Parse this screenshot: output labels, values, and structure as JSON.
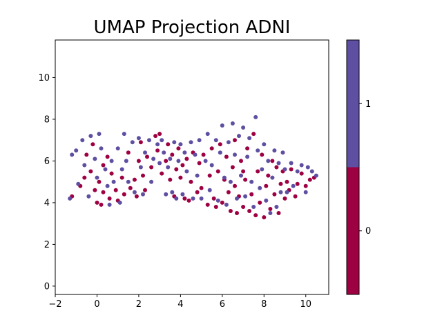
{
  "chart_data": {
    "type": "scatter",
    "title": "UMAP Projection ADNI",
    "xlabel": "",
    "ylabel": "",
    "xlim": [
      -2,
      11.1
    ],
    "ylim": [
      -0.4,
      11.8
    ],
    "xticks": [
      -2,
      0,
      2,
      4,
      6,
      8,
      10
    ],
    "yticks": [
      0,
      2,
      4,
      6,
      8,
      10
    ],
    "grid": false,
    "marker_size": 3,
    "colorbar": {
      "ticks": [
        "0",
        "1"
      ],
      "colors": [
        "#9e0142",
        "#5e4fa2"
      ]
    },
    "series": [
      {
        "label": "0",
        "color": "#9e0142",
        "points": [
          [
            -1.2,
            4.3
          ],
          [
            -0.8,
            4.8
          ],
          [
            -0.6,
            5.2
          ],
          [
            -0.5,
            6.3
          ],
          [
            -0.3,
            5.5
          ],
          [
            -0.2,
            6.8
          ],
          [
            -0.1,
            4.6
          ],
          [
            0.0,
            4.0
          ],
          [
            0.1,
            5.0
          ],
          [
            0.2,
            3.9
          ],
          [
            0.3,
            4.5
          ],
          [
            0.3,
            5.8
          ],
          [
            0.5,
            6.2
          ],
          [
            0.6,
            4.2
          ],
          [
            0.7,
            5.4
          ],
          [
            0.9,
            4.6
          ],
          [
            1.0,
            4.1
          ],
          [
            1.2,
            5.2
          ],
          [
            1.3,
            4.4
          ],
          [
            1.5,
            6.4
          ],
          [
            1.6,
            4.7
          ],
          [
            1.8,
            5.1
          ],
          [
            1.9,
            4.3
          ],
          [
            2.0,
            6.0
          ],
          [
            2.1,
            6.9
          ],
          [
            2.2,
            5.3
          ],
          [
            2.3,
            4.6
          ],
          [
            2.4,
            6.2
          ],
          [
            2.6,
            5.7
          ],
          [
            2.8,
            7.2
          ],
          [
            2.9,
            6.5
          ],
          [
            3.0,
            7.3
          ],
          [
            3.1,
            5.4
          ],
          [
            3.3,
            6.0
          ],
          [
            3.4,
            6.8
          ],
          [
            3.5,
            5.1
          ],
          [
            3.6,
            6.3
          ],
          [
            3.7,
            4.3
          ],
          [
            3.8,
            5.6
          ],
          [
            3.9,
            6.6
          ],
          [
            4.0,
            5.2
          ],
          [
            4.1,
            5.8
          ],
          [
            4.2,
            4.2
          ],
          [
            4.3,
            6.1
          ],
          [
            4.5,
            5.0
          ],
          [
            4.6,
            6.4
          ],
          [
            4.8,
            4.5
          ],
          [
            4.9,
            5.9
          ],
          [
            5.0,
            4.7
          ],
          [
            5.1,
            6.3
          ],
          [
            5.3,
            3.9
          ],
          [
            5.4,
            5.3
          ],
          [
            5.5,
            6.6
          ],
          [
            5.6,
            4.2
          ],
          [
            5.8,
            5.5
          ],
          [
            5.9,
            6.8
          ],
          [
            6.0,
            4.0
          ],
          [
            6.1,
            5.1
          ],
          [
            6.2,
            6.2
          ],
          [
            6.3,
            4.5
          ],
          [
            6.4,
            3.6
          ],
          [
            6.5,
            5.7
          ],
          [
            6.6,
            7.0
          ],
          [
            6.7,
            3.5
          ],
          [
            6.8,
            4.3
          ],
          [
            6.9,
            6.0
          ],
          [
            7.0,
            3.8
          ],
          [
            7.1,
            5.1
          ],
          [
            7.2,
            6.6
          ],
          [
            7.3,
            3.6
          ],
          [
            7.4,
            4.4
          ],
          [
            7.5,
            7.3
          ],
          [
            7.6,
            3.4
          ],
          [
            7.7,
            5.5
          ],
          [
            7.8,
            4.0
          ],
          [
            7.9,
            6.3
          ],
          [
            8.0,
            3.3
          ],
          [
            8.1,
            4.8
          ],
          [
            8.2,
            5.3
          ],
          [
            8.3,
            3.7
          ],
          [
            8.4,
            6.0
          ],
          [
            8.5,
            4.4
          ],
          [
            8.6,
            5.7
          ],
          [
            8.7,
            3.5
          ],
          [
            8.8,
            4.9
          ],
          [
            8.9,
            5.5
          ],
          [
            9.0,
            4.2
          ],
          [
            9.1,
            5.0
          ],
          [
            9.2,
            4.6
          ],
          [
            9.3,
            5.6
          ],
          [
            9.5,
            4.3
          ],
          [
            9.6,
            4.9
          ],
          [
            9.8,
            5.4
          ],
          [
            10.0,
            4.8
          ],
          [
            10.2,
            5.1
          ],
          [
            10.4,
            5.2
          ],
          [
            5.7,
            3.8
          ],
          [
            6.6,
            4.8
          ],
          [
            7.0,
            5.5
          ],
          [
            4.4,
            4.1
          ]
        ]
      },
      {
        "label": "1",
        "color": "#5e4fa2",
        "points": [
          [
            -1.3,
            4.2
          ],
          [
            -1.2,
            6.3
          ],
          [
            -1.0,
            6.5
          ],
          [
            -0.9,
            4.9
          ],
          [
            -0.7,
            7.0
          ],
          [
            -0.6,
            5.8
          ],
          [
            -0.4,
            4.3
          ],
          [
            -0.3,
            7.2
          ],
          [
            -0.1,
            6.1
          ],
          [
            0.0,
            5.2
          ],
          [
            0.1,
            7.3
          ],
          [
            0.2,
            6.6
          ],
          [
            0.4,
            5.6
          ],
          [
            0.5,
            4.8
          ],
          [
            0.6,
            3.9
          ],
          [
            0.7,
            6.0
          ],
          [
            0.8,
            5.0
          ],
          [
            1.0,
            6.6
          ],
          [
            1.1,
            4.0
          ],
          [
            1.2,
            5.6
          ],
          [
            1.3,
            7.3
          ],
          [
            1.4,
            6.0
          ],
          [
            1.5,
            5.0
          ],
          [
            1.7,
            6.9
          ],
          [
            1.8,
            4.5
          ],
          [
            2.0,
            7.1
          ],
          [
            2.1,
            5.7
          ],
          [
            2.2,
            4.4
          ],
          [
            2.3,
            6.4
          ],
          [
            2.5,
            7.0
          ],
          [
            2.6,
            5.0
          ],
          [
            2.7,
            6.1
          ],
          [
            2.9,
            6.8
          ],
          [
            3.0,
            5.9
          ],
          [
            3.1,
            7.0
          ],
          [
            3.2,
            6.4
          ],
          [
            3.4,
            5.7
          ],
          [
            3.5,
            6.1
          ],
          [
            3.6,
            4.5
          ],
          [
            3.7,
            6.9
          ],
          [
            3.8,
            4.2
          ],
          [
            3.9,
            6.0
          ],
          [
            4.0,
            6.8
          ],
          [
            4.1,
            4.4
          ],
          [
            4.2,
            6.4
          ],
          [
            4.3,
            5.5
          ],
          [
            4.5,
            6.9
          ],
          [
            4.6,
            4.2
          ],
          [
            4.7,
            6.3
          ],
          [
            4.8,
            5.3
          ],
          [
            4.9,
            7.0
          ],
          [
            5.0,
            4.2
          ],
          [
            5.2,
            6.0
          ],
          [
            5.3,
            7.3
          ],
          [
            5.4,
            4.6
          ],
          [
            5.5,
            5.8
          ],
          [
            5.7,
            7.0
          ],
          [
            5.8,
            4.1
          ],
          [
            5.9,
            6.4
          ],
          [
            6.0,
            7.7
          ],
          [
            6.1,
            5.2
          ],
          [
            6.2,
            3.9
          ],
          [
            6.3,
            6.9
          ],
          [
            6.4,
            5.0
          ],
          [
            6.5,
            7.8
          ],
          [
            6.6,
            6.3
          ],
          [
            6.7,
            4.2
          ],
          [
            6.8,
            7.2
          ],
          [
            6.9,
            5.3
          ],
          [
            7.0,
            7.6
          ],
          [
            7.1,
            4.3
          ],
          [
            7.2,
            6.2
          ],
          [
            7.3,
            7.1
          ],
          [
            7.4,
            5.0
          ],
          [
            7.5,
            3.8
          ],
          [
            7.6,
            8.1
          ],
          [
            7.7,
            6.5
          ],
          [
            7.8,
            4.7
          ],
          [
            7.9,
            5.6
          ],
          [
            8.0,
            6.8
          ],
          [
            8.1,
            4.1
          ],
          [
            8.2,
            6.0
          ],
          [
            8.3,
            3.5
          ],
          [
            8.4,
            5.2
          ],
          [
            8.5,
            6.5
          ],
          [
            8.6,
            3.8
          ],
          [
            8.7,
            5.9
          ],
          [
            8.8,
            4.5
          ],
          [
            8.9,
            6.4
          ],
          [
            9.0,
            5.6
          ],
          [
            9.1,
            4.5
          ],
          [
            9.3,
            5.9
          ],
          [
            9.4,
            4.8
          ],
          [
            9.6,
            5.5
          ],
          [
            9.8,
            5.8
          ],
          [
            10.0,
            4.5
          ],
          [
            10.1,
            5.7
          ],
          [
            10.3,
            5.5
          ],
          [
            10.5,
            5.3
          ],
          [
            3.3,
            4.4
          ]
        ]
      }
    ]
  }
}
